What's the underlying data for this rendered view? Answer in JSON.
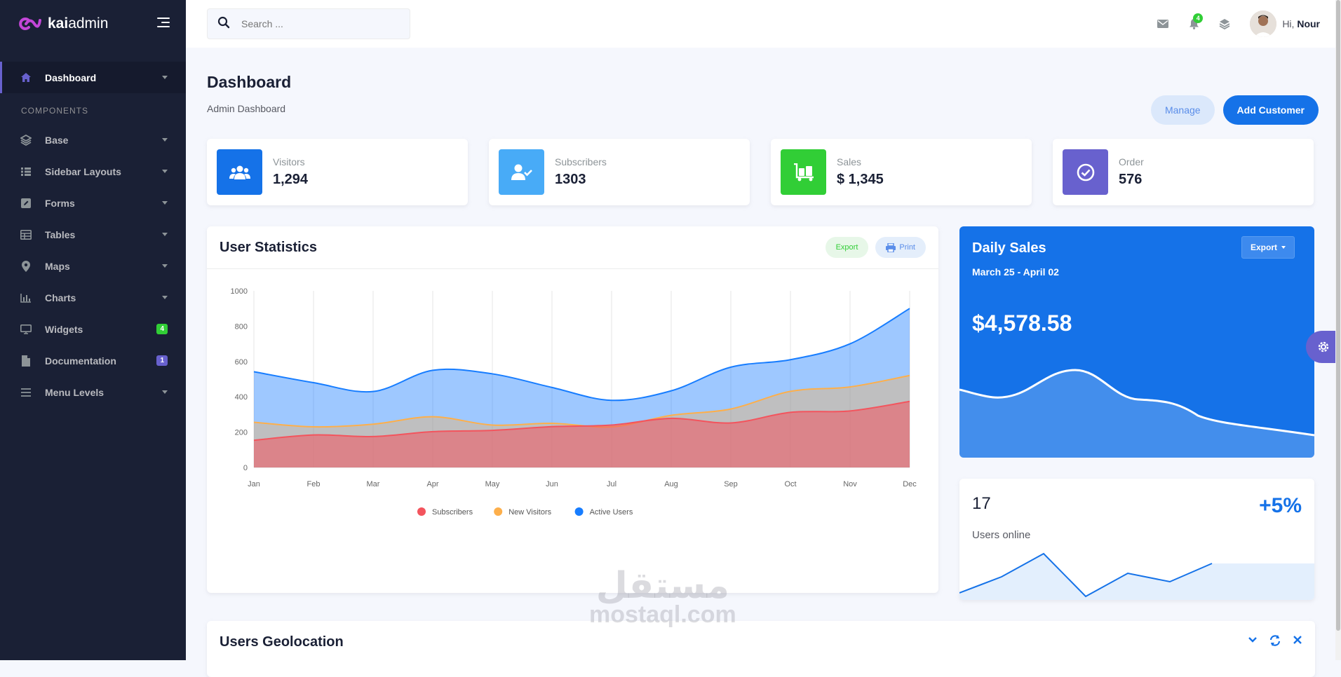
{
  "app": {
    "logo_bold": "kai",
    "logo_light": "admin"
  },
  "sidebar": {
    "section_title": "COMPONENTS",
    "dashboard": {
      "label": "Dashboard",
      "icon": "home-icon"
    },
    "items": [
      {
        "label": "Base",
        "icon": "layers-icon"
      },
      {
        "label": "Sidebar Layouts",
        "icon": "th-list-icon"
      },
      {
        "label": "Forms",
        "icon": "pen-square-icon"
      },
      {
        "label": "Tables",
        "icon": "table-icon"
      },
      {
        "label": "Maps",
        "icon": "map-marker-icon"
      },
      {
        "label": "Charts",
        "icon": "bar-chart-icon"
      },
      {
        "label": "Widgets",
        "icon": "desktop-icon",
        "badge": "4",
        "badge_color": "#31ce36"
      },
      {
        "label": "Documentation",
        "icon": "file-icon",
        "badge": "1",
        "badge_color": "#6861ce"
      },
      {
        "label": "Menu Levels",
        "icon": "bars-icon"
      }
    ]
  },
  "topbar": {
    "search_placeholder": "Search ...",
    "notification_count": "4",
    "greeting": "Hi,",
    "user_name": "Nour"
  },
  "page": {
    "title": "Dashboard",
    "subtitle": "Admin Dashboard",
    "manage_label": "Manage",
    "add_customer_label": "Add Customer"
  },
  "stats": [
    {
      "label": "Visitors",
      "value": "1,294",
      "color": "#1572e8",
      "icon": "users-icon"
    },
    {
      "label": "Subscribers",
      "value": "1303",
      "color": "#48abf7",
      "icon": "user-check-icon"
    },
    {
      "label": "Sales",
      "value": "$ 1,345",
      "color": "#31ce36",
      "icon": "luggage-cart-icon"
    },
    {
      "label": "Order",
      "value": "576",
      "color": "#6861ce",
      "icon": "check-circle-icon"
    }
  ],
  "user_statistics": {
    "title": "User Statistics",
    "export_label": "Export",
    "print_label": "Print"
  },
  "daily_sales": {
    "title": "Daily Sales",
    "date_range": "March 25 - April 02",
    "amount": "$4,578.58",
    "export_label": "Export"
  },
  "users_online": {
    "count": "17",
    "change": "+5%",
    "label": "Users online"
  },
  "geolocation": {
    "title": "Users Geolocation"
  },
  "watermark": {
    "arabic": "مستقل",
    "latin": "mostaql.com"
  },
  "chart_data": {
    "type": "area",
    "categories": [
      "Jan",
      "Feb",
      "Mar",
      "Apr",
      "May",
      "Jun",
      "Jul",
      "Aug",
      "Sep",
      "Oct",
      "Nov",
      "Dec"
    ],
    "ylim": [
      0,
      1000
    ],
    "yticks": [
      0,
      200,
      400,
      600,
      800,
      1000
    ],
    "grid": "vertical",
    "legend_position": "bottom",
    "series": [
      {
        "name": "Subscribers",
        "color": "#f3545d",
        "values": [
          154,
          184,
          175,
          203,
          210,
          231,
          240,
          278,
          252,
          312,
          320,
          374
        ]
      },
      {
        "name": "New Visitors",
        "color": "#fdaf4b",
        "values": [
          256,
          230,
          245,
          287,
          240,
          250,
          230,
          295,
          331,
          431,
          456,
          521
        ]
      },
      {
        "name": "Active Users",
        "color": "#177dff",
        "values": [
          542,
          480,
          430,
          550,
          530,
          453,
          380,
          434,
          568,
          610,
          700,
          900
        ]
      }
    ]
  }
}
